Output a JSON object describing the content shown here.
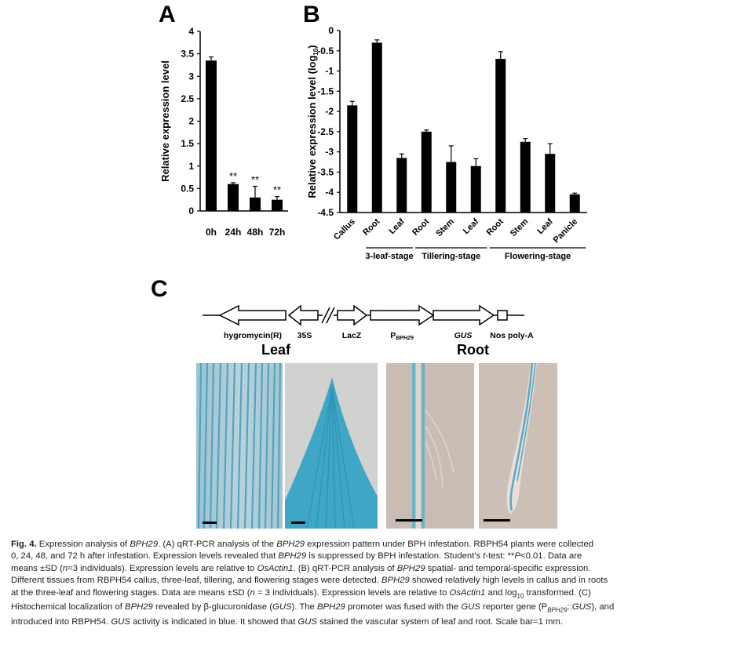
{
  "figure": {
    "panels": {
      "a": "A",
      "b": "B",
      "c": "C"
    }
  },
  "chart_data": [
    {
      "type": "bar",
      "panel": "A",
      "categories": [
        "0h",
        "24h",
        "48h",
        "72h"
      ],
      "values": [
        3.35,
        0.6,
        0.3,
        0.25
      ],
      "errors": [
        0.08,
        0.03,
        0.25,
        0.07
      ],
      "significance": [
        "",
        "**",
        "**",
        "**"
      ],
      "ylabel": "Relative expression level",
      "xlabel": "",
      "ylim": [
        0,
        4
      ],
      "yticks": [
        "0",
        "0.5",
        "1",
        "1.5",
        "2",
        "2.5",
        "3",
        "3.5",
        "4"
      ],
      "grid": false
    },
    {
      "type": "bar",
      "panel": "B",
      "categories": [
        "Callus",
        "Root",
        "Leaf",
        "Root",
        "Stem",
        "Leaf",
        "Root",
        "Stem",
        "Leaf",
        "Panicle"
      ],
      "values": [
        -1.85,
        -0.3,
        -3.15,
        -2.5,
        -3.25,
        -3.35,
        -0.7,
        -2.75,
        -3.05,
        -4.05
      ],
      "errors": [
        0.1,
        0.07,
        0.1,
        0.04,
        0.4,
        0.18,
        0.18,
        0.08,
        0.25,
        0.03
      ],
      "groups": [
        {
          "label": "3-leaf-stage",
          "start": 1,
          "end": 2
        },
        {
          "label": "Tillering-stage",
          "start": 3,
          "end": 5
        },
        {
          "label": "Flowering-stage",
          "start": 6,
          "end": 9
        }
      ],
      "ylabel_main": "Relative expression level (log",
      "ylabel_sub": "10",
      "ylabel_end": ")",
      "ylim": [
        -4.5,
        0
      ],
      "yticks": [
        "0",
        "-0.5",
        "-1",
        "-1.5",
        "-2",
        "-2.5",
        "-3",
        "-3.5",
        "-4",
        "-4.5"
      ],
      "grid": false
    }
  ],
  "construct": {
    "labels": {
      "hygromycin": "hygromycin(R)",
      "p35s": "35S",
      "lacz": "LacZ",
      "promoter_main": "P",
      "promoter_sub": "BPH29",
      "gus": "GUS",
      "nos": "Nos poly-A"
    }
  },
  "photos": {
    "leaf_title": "Leaf",
    "root_title": "Root",
    "colors": {
      "leaf_bg": "#c4c8c4",
      "root_bg": "#c5b8b0",
      "gus_blue": "#5aa9c4"
    }
  },
  "caption": {
    "lines": [
      [
        {
          "t": "Fig. 4.",
          "b": 1
        },
        {
          "t": "  Expression analysis of "
        },
        {
          "t": "BPH29",
          "i": 1
        },
        {
          "t": ". (A) qRT-PCR analysis of the "
        },
        {
          "t": "BPH29",
          "i": 1
        },
        {
          "t": " expression pattern under BPH infestation. RBPH54 plants were collected"
        }
      ],
      [
        {
          "t": "0, 24, 48, and 72 h after infestation. Expression levels revealed that "
        },
        {
          "t": "BPH29",
          "i": 1
        },
        {
          "t": " is suppressed by BPH infestation. Student's "
        },
        {
          "t": "t",
          "i": 1
        },
        {
          "t": "-test: **"
        },
        {
          "t": "P",
          "i": 1
        },
        {
          "t": "<0.01. Data are"
        }
      ],
      [
        {
          "t": "means ±SD ("
        },
        {
          "t": "n",
          "i": 1
        },
        {
          "t": "=3 individuals). Expression levels are relative to "
        },
        {
          "t": "OsActin1",
          "i": 1
        },
        {
          "t": ". (B) qRT-PCR analysis of "
        },
        {
          "t": "BPH29",
          "i": 1
        },
        {
          "t": " spatial- and temporal-specific expression."
        }
      ],
      [
        {
          "t": "Different tissues from RBPH54 callus, three-leaf, tillering, and flowering stages were detected. "
        },
        {
          "t": "BPH29",
          "i": 1
        },
        {
          "t": " showed relatively high levels in callus and in roots"
        }
      ],
      [
        {
          "t": "at the three-leaf and flowering stages. Data are means ±SD ("
        },
        {
          "t": "n",
          "i": 1
        },
        {
          "t": " = 3 individuals). Expression levels are relative to "
        },
        {
          "t": "OsActin1",
          "i": 1
        },
        {
          "t": " and log"
        },
        {
          "t": "10",
          "sub": 1
        },
        {
          "t": " transformed. (C)"
        }
      ],
      [
        {
          "t": "Histochemical localization of "
        },
        {
          "t": "BPH29",
          "i": 1
        },
        {
          "t": " revealed by β-glucuronidase ("
        },
        {
          "t": "GUS",
          "i": 1
        },
        {
          "t": "). The "
        },
        {
          "t": "BPH29",
          "i": 1
        },
        {
          "t": " promoter was fused with the "
        },
        {
          "t": "GUS",
          "i": 1
        },
        {
          "t": " reporter gene (P"
        },
        {
          "t": "BPH29",
          "sub": 1,
          "i": 1
        },
        {
          "t": "::"
        },
        {
          "t": "GUS",
          "i": 1
        },
        {
          "t": "), and"
        }
      ],
      [
        {
          "t": "introduced into RBPH54. "
        },
        {
          "t": "GUS",
          "i": 1
        },
        {
          "t": " activity is indicated in blue. It showed that "
        },
        {
          "t": "GUS",
          "i": 1
        },
        {
          "t": " stained the vascular system of leaf and root. Scale bar=1 mm."
        }
      ]
    ]
  }
}
